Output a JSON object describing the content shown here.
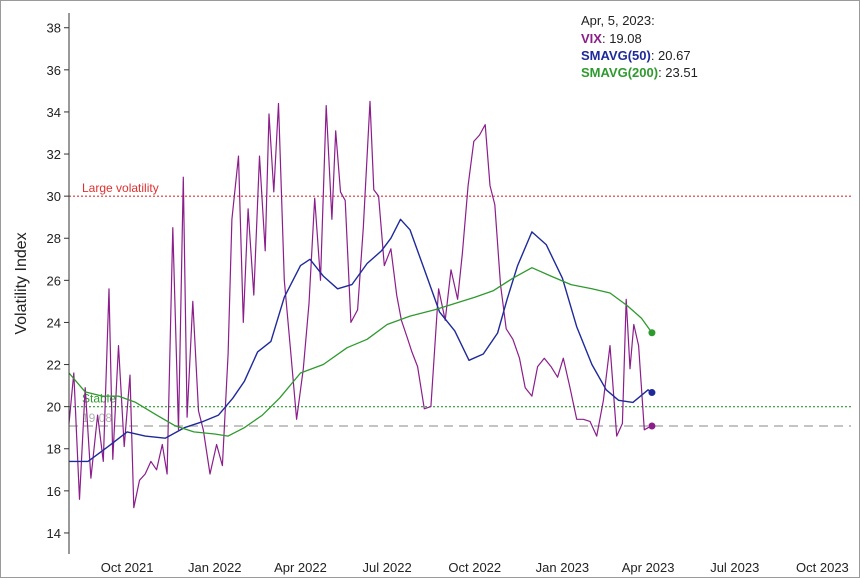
{
  "chart_data": {
    "type": "line",
    "ylabel": "Volatility Index",
    "ylim": [
      13,
      38.7
    ],
    "yticks": [
      14,
      16,
      18,
      20,
      22,
      24,
      26,
      28,
      30,
      32,
      34,
      36,
      38
    ],
    "xlim": [
      "2021-08-01",
      "2023-10-31"
    ],
    "xticks": [
      {
        "date": "2021-10-01",
        "label": "Oct 2021"
      },
      {
        "date": "2022-01-01",
        "label": "Jan 2022"
      },
      {
        "date": "2022-04-01",
        "label": "Apr 2022"
      },
      {
        "date": "2022-07-01",
        "label": "Jul 2022"
      },
      {
        "date": "2022-10-01",
        "label": "Oct 2022"
      },
      {
        "date": "2023-01-01",
        "label": "Jan 2023"
      },
      {
        "date": "2023-04-01",
        "label": "Apr 2023"
      },
      {
        "date": "2023-07-01",
        "label": "Jul 2023"
      },
      {
        "date": "2023-10-01",
        "label": "Oct 2023"
      }
    ],
    "reference_lines": [
      {
        "label": "Large volatility",
        "value": 30,
        "color": "#e03030",
        "style": "dotted"
      },
      {
        "label": "Stable",
        "value": 20,
        "color": "#2e9a2e",
        "style": "dotted"
      },
      {
        "label": "19.08",
        "value": 19.08,
        "color": "#b0b0b0",
        "style": "dashed"
      }
    ],
    "legend": {
      "date_label": "Apr, 5, 2023:",
      "entries": [
        {
          "name": "VIX",
          "value": "19.08",
          "color": "#8b1e8b"
        },
        {
          "name": "SMAVG(50)",
          "value": "20.67",
          "color": "#1f2a9a"
        },
        {
          "name": "SMAVG(200)",
          "value": "23.51",
          "color": "#2e9a2e"
        }
      ]
    },
    "series": [
      {
        "name": "VIX",
        "color": "#8b1e8b",
        "width": 1.2,
        "x": [
          "2021-08-01",
          "2021-08-06",
          "2021-08-12",
          "2021-08-18",
          "2021-08-24",
          "2021-08-31",
          "2021-09-06",
          "2021-09-12",
          "2021-09-16",
          "2021-09-22",
          "2021-09-28",
          "2021-10-04",
          "2021-10-08",
          "2021-10-14",
          "2021-10-20",
          "2021-10-26",
          "2021-11-01",
          "2021-11-07",
          "2021-11-12",
          "2021-11-18",
          "2021-11-24",
          "2021-11-29",
          "2021-12-03",
          "2021-12-09",
          "2021-12-15",
          "2021-12-20",
          "2021-12-27",
          "2022-01-03",
          "2022-01-09",
          "2022-01-15",
          "2022-01-19",
          "2022-01-26",
          "2022-01-31",
          "2022-02-05",
          "2022-02-11",
          "2022-02-17",
          "2022-02-23",
          "2022-02-27",
          "2022-03-04",
          "2022-03-09",
          "2022-03-15",
          "2022-03-22",
          "2022-03-28",
          "2022-04-04",
          "2022-04-10",
          "2022-04-16",
          "2022-04-22",
          "2022-04-28",
          "2022-05-04",
          "2022-05-08",
          "2022-05-13",
          "2022-05-18",
          "2022-05-24",
          "2022-05-31",
          "2022-06-06",
          "2022-06-13",
          "2022-06-17",
          "2022-06-22",
          "2022-06-28",
          "2022-07-05",
          "2022-07-11",
          "2022-07-16",
          "2022-07-22",
          "2022-07-27",
          "2022-08-02",
          "2022-08-09",
          "2022-08-16",
          "2022-08-24",
          "2022-08-31",
          "2022-09-06",
          "2022-09-13",
          "2022-09-18",
          "2022-09-24",
          "2022-09-30",
          "2022-10-06",
          "2022-10-12",
          "2022-10-17",
          "2022-10-22",
          "2022-10-28",
          "2022-11-03",
          "2022-11-10",
          "2022-11-17",
          "2022-11-23",
          "2022-11-30",
          "2022-12-06",
          "2022-12-13",
          "2022-12-20",
          "2022-12-27",
          "2023-01-02",
          "2023-01-09",
          "2023-01-16",
          "2023-01-23",
          "2023-01-30",
          "2023-02-06",
          "2023-02-13",
          "2023-02-20",
          "2023-02-27",
          "2023-03-05",
          "2023-03-09",
          "2023-03-13",
          "2023-03-17",
          "2023-03-22",
          "2023-03-28",
          "2023-04-01",
          "2023-04-05"
        ],
        "y": [
          19.2,
          21.6,
          15.6,
          20.9,
          16.6,
          19.6,
          17.4,
          25.6,
          17.5,
          22.9,
          18.1,
          21.5,
          15.2,
          16.5,
          16.8,
          17.4,
          17.0,
          18.2,
          16.8,
          28.5,
          18.9,
          30.9,
          19.5,
          25.0,
          19.8,
          18.9,
          16.8,
          18.2,
          17.2,
          22.5,
          28.9,
          31.9,
          24.0,
          29.4,
          25.3,
          31.9,
          27.4,
          33.9,
          30.2,
          34.4,
          26.0,
          22.5,
          19.4,
          21.8,
          24.9,
          29.9,
          26.0,
          34.3,
          28.9,
          33.1,
          30.2,
          29.8,
          24.0,
          24.6,
          28.5,
          34.5,
          30.3,
          30.0,
          26.7,
          27.5,
          25.3,
          24.1,
          23.3,
          22.6,
          21.9,
          19.9,
          20.0,
          25.6,
          24.1,
          26.5,
          25.1,
          27.3,
          30.5,
          32.6,
          32.9,
          33.4,
          30.5,
          29.6,
          25.8,
          23.7,
          23.2,
          22.3,
          20.9,
          20.5,
          21.9,
          22.3,
          21.9,
          21.4,
          22.3,
          20.9,
          19.4,
          19.4,
          19.3,
          18.6,
          20.3,
          22.9,
          18.6,
          19.2,
          25.1,
          21.8,
          23.9,
          22.9,
          18.9,
          19.0,
          19.08
        ]
      },
      {
        "name": "SMAVG(50)",
        "color": "#1f2a9a",
        "width": 1.4,
        "x": [
          "2021-08-01",
          "2021-08-21",
          "2021-09-11",
          "2021-10-01",
          "2021-10-20",
          "2021-11-10",
          "2021-11-30",
          "2021-12-20",
          "2022-01-05",
          "2022-01-20",
          "2022-02-01",
          "2022-02-15",
          "2022-03-01",
          "2022-03-15",
          "2022-04-01",
          "2022-04-11",
          "2022-04-25",
          "2022-05-10",
          "2022-05-25",
          "2022-06-10",
          "2022-06-25",
          "2022-07-05",
          "2022-07-15",
          "2022-07-25",
          "2022-08-10",
          "2022-08-25",
          "2022-09-10",
          "2022-09-25",
          "2022-10-10",
          "2022-10-25",
          "2022-11-04",
          "2022-11-15",
          "2022-11-30",
          "2022-12-15",
          "2023-01-01",
          "2023-01-16",
          "2023-02-01",
          "2023-02-16",
          "2023-03-01",
          "2023-03-16",
          "2023-04-01",
          "2023-04-05"
        ],
        "y": [
          17.4,
          17.4,
          18.1,
          18.8,
          18.6,
          18.5,
          19.0,
          19.3,
          19.6,
          20.4,
          21.2,
          22.6,
          23.1,
          25.2,
          26.7,
          27.0,
          26.2,
          25.6,
          25.8,
          26.8,
          27.4,
          28.0,
          28.9,
          28.4,
          26.4,
          24.5,
          23.6,
          22.2,
          22.5,
          23.5,
          25.1,
          26.7,
          28.3,
          27.7,
          26.1,
          23.8,
          22.0,
          20.8,
          20.3,
          20.2,
          20.8,
          20.67
        ]
      },
      {
        "name": "SMAVG(200)",
        "color": "#2e9a2e",
        "width": 1.3,
        "x": [
          "2021-08-01",
          "2021-08-18",
          "2021-09-05",
          "2021-09-22",
          "2021-10-10",
          "2021-11-01",
          "2021-11-20",
          "2021-12-10",
          "2022-01-01",
          "2022-01-15",
          "2022-02-01",
          "2022-02-20",
          "2022-03-10",
          "2022-04-01",
          "2022-04-25",
          "2022-05-20",
          "2022-06-10",
          "2022-07-01",
          "2022-07-25",
          "2022-08-20",
          "2022-09-10",
          "2022-10-01",
          "2022-10-20",
          "2022-11-10",
          "2022-11-30",
          "2022-12-20",
          "2023-01-10",
          "2023-02-01",
          "2023-02-20",
          "2023-03-10",
          "2023-03-25",
          "2023-04-05"
        ],
        "y": [
          21.6,
          20.7,
          20.5,
          20.5,
          20.2,
          19.6,
          19.1,
          18.8,
          18.7,
          18.6,
          19.0,
          19.6,
          20.4,
          21.6,
          22.0,
          22.8,
          23.2,
          23.9,
          24.3,
          24.6,
          24.9,
          25.2,
          25.5,
          26.1,
          26.6,
          26.2,
          25.8,
          25.6,
          25.4,
          24.8,
          24.2,
          23.51
        ]
      }
    ],
    "end_markers": [
      {
        "series": "VIX",
        "x": "2023-04-05",
        "y": 19.08,
        "color": "#8b1e8b"
      },
      {
        "series": "SMAVG(50)",
        "x": "2023-04-05",
        "y": 20.67,
        "color": "#1f2a9a"
      },
      {
        "series": "SMAVG(200)",
        "x": "2023-04-05",
        "y": 23.51,
        "color": "#2e9a2e"
      }
    ]
  }
}
